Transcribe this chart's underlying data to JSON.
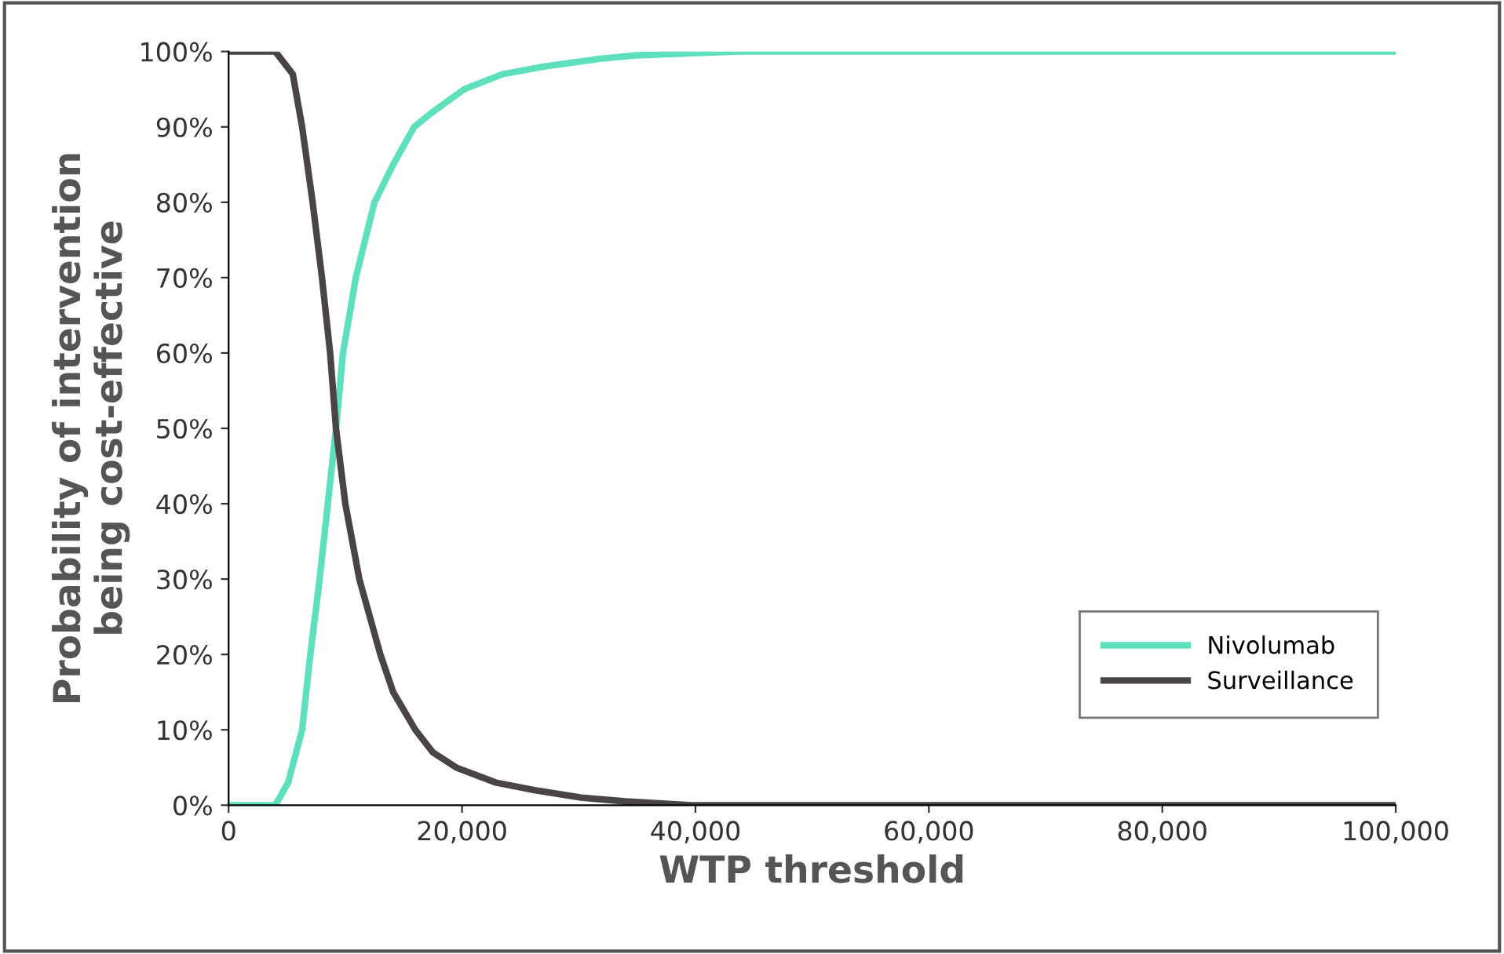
{
  "chart_data": {
    "type": "line",
    "xlabel": "WTP threshold",
    "ylabel": "Probability of intervention\nbeing cost-effective",
    "xlim": [
      0,
      100000
    ],
    "xticks": [
      {
        "value": 0,
        "label": "0"
      },
      {
        "value": 20000,
        "label": "20,000"
      },
      {
        "value": 40000,
        "label": "40,000"
      },
      {
        "value": 60000,
        "label": "60,000"
      },
      {
        "value": 80000,
        "label": "80,000"
      },
      {
        "value": 100000,
        "label": "100,000"
      }
    ],
    "ylim": [
      0,
      100
    ],
    "yticks": [
      {
        "value": 0,
        "label": "0%"
      },
      {
        "value": 10,
        "label": "10%"
      },
      {
        "value": 20,
        "label": "20%"
      },
      {
        "value": 30,
        "label": "30%"
      },
      {
        "value": 40,
        "label": "40%"
      },
      {
        "value": 50,
        "label": "50%"
      },
      {
        "value": 60,
        "label": "60%"
      },
      {
        "value": 70,
        "label": "70%"
      },
      {
        "value": 80,
        "label": "80%"
      },
      {
        "value": 90,
        "label": "90%"
      },
      {
        "value": 100,
        "label": "100%"
      }
    ],
    "grid": false,
    "legend": "bottom right",
    "marker": "none",
    "line_style": "solid",
    "series": [
      {
        "name": "Nivolumab",
        "color": "#5ee0bc",
        "x": [
          0,
          2000,
          4000,
          5100,
          6300,
          7000,
          7800,
          8500,
          9200,
          9800,
          10900,
          12500,
          14100,
          15900,
          17500,
          20200,
          23500,
          27000,
          31600,
          35000,
          43700,
          60000,
          80000,
          100000
        ],
        "values": [
          0,
          0,
          0,
          3,
          10,
          20,
          30,
          40,
          50,
          60,
          70,
          80,
          85,
          90,
          92,
          95,
          97,
          98,
          99,
          99.5,
          100,
          100,
          100,
          100
        ]
      },
      {
        "name": "Surveillance",
        "color": "#4b4446",
        "x": [
          0,
          2000,
          4000,
          5500,
          6300,
          7200,
          8000,
          8700,
          9200,
          10000,
          11200,
          13000,
          14100,
          16000,
          17500,
          19500,
          22900,
          26200,
          30200,
          34000,
          39700,
          60000,
          80000,
          100000
        ],
        "values": [
          100,
          100,
          100,
          97,
          90,
          80,
          70,
          60,
          50,
          40,
          30,
          20,
          15,
          10,
          7,
          5,
          3,
          2,
          1,
          0.5,
          0,
          0,
          0,
          0
        ]
      }
    ]
  }
}
